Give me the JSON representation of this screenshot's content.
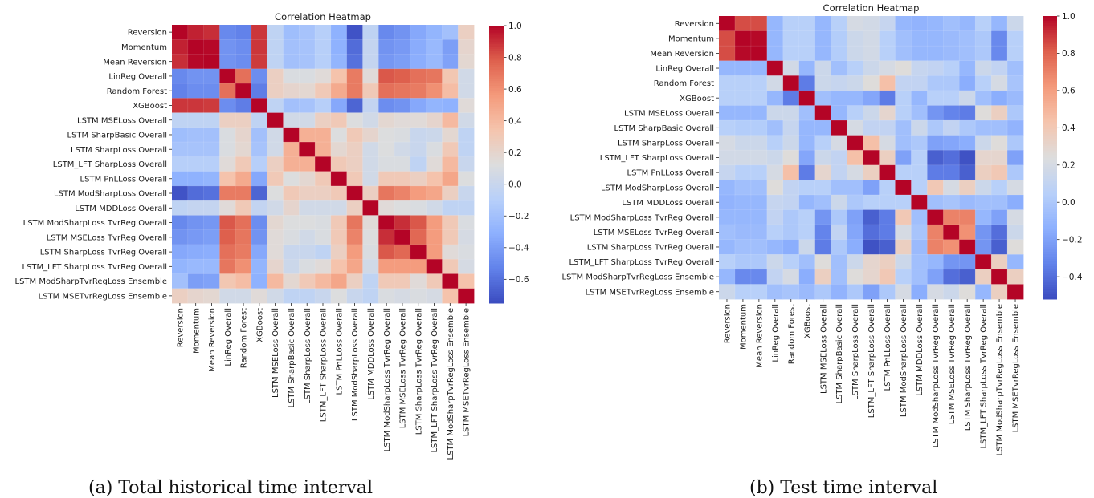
{
  "chart_data": [
    {
      "type": "heatmap",
      "title": "Correlation Heatmap",
      "caption": "(a) Total historical time interval",
      "labels": [
        "Reversion",
        "Momentum",
        "Mean Reversion",
        "LinReg Overall",
        "Random Forest",
        "XGBoost",
        "LSTM MSELoss Overall",
        "LSTM SharpBasic Overall",
        "LSTM SharpLoss Overall",
        "LSTM_LFT SharpLoss Overall",
        "LSTM PnLLoss Overall",
        "LSTM ModSharpLoss Overall",
        "LSTM MDDLoss Overall",
        "LSTM ModSharpLoss TvrReg Overall",
        "LSTM MSELoss TvrReg Overall",
        "LSTM SharpLoss TvrReg Overall",
        "LSTM_LFT SharpLoss TvrReg Overall",
        "LSTM ModSharpTvrRegLoss Ensemble",
        "LSTM MSETvrRegLoss Ensemble"
      ],
      "colormap": "coolwarm",
      "vmin": -0.75,
      "vmax": 1.0,
      "colorbar_ticks": [
        1.0,
        0.8,
        0.6,
        0.4,
        0.2,
        0.0,
        -0.2,
        -0.4,
        -0.6
      ],
      "colorbar_tick_labels": [
        "1.0",
        "0.8",
        "0.6",
        "0.4",
        "0.2",
        "0.0",
        "−0.2",
        "−0.4",
        "−0.6"
      ],
      "matrix": [
        [
          1.0,
          0.93,
          0.9,
          -0.5,
          -0.53,
          0.88,
          -0.05,
          -0.22,
          -0.18,
          -0.1,
          -0.3,
          -0.72,
          -0.05,
          -0.5,
          -0.45,
          -0.35,
          -0.28,
          -0.2,
          0.25
        ],
        [
          0.93,
          1.0,
          0.99,
          -0.45,
          -0.48,
          0.88,
          -0.05,
          -0.2,
          -0.18,
          -0.1,
          -0.3,
          -0.62,
          -0.02,
          -0.45,
          -0.42,
          -0.33,
          -0.25,
          -0.4,
          0.2
        ],
        [
          0.9,
          0.99,
          1.0,
          -0.45,
          -0.48,
          0.87,
          -0.05,
          -0.2,
          -0.18,
          -0.1,
          -0.28,
          -0.6,
          -0.02,
          -0.43,
          -0.4,
          -0.32,
          -0.25,
          -0.38,
          0.18
        ],
        [
          -0.5,
          -0.45,
          -0.45,
          1.0,
          0.72,
          -0.48,
          0.25,
          0.1,
          0.1,
          0.15,
          0.35,
          0.68,
          0.15,
          0.8,
          0.78,
          0.72,
          0.7,
          0.32,
          0.05
        ],
        [
          -0.53,
          -0.48,
          -0.48,
          0.72,
          1.0,
          -0.55,
          0.25,
          0.2,
          0.18,
          0.3,
          0.48,
          0.68,
          0.3,
          0.72,
          0.7,
          0.68,
          0.6,
          0.38,
          0.05
        ],
        [
          0.88,
          0.88,
          0.87,
          -0.48,
          -0.55,
          1.0,
          -0.05,
          -0.2,
          -0.18,
          -0.1,
          -0.35,
          -0.65,
          -0.03,
          -0.48,
          -0.45,
          -0.35,
          -0.28,
          -0.3,
          0.15
        ],
        [
          -0.05,
          -0.05,
          -0.05,
          0.25,
          0.25,
          -0.05,
          1.0,
          0.05,
          0.05,
          0.25,
          0.3,
          0.12,
          0.05,
          0.18,
          0.15,
          0.15,
          0.2,
          0.4,
          0.05
        ],
        [
          -0.22,
          -0.2,
          -0.2,
          0.1,
          0.2,
          -0.2,
          0.05,
          1.0,
          0.45,
          0.45,
          0.12,
          0.3,
          0.2,
          0.12,
          0.1,
          0.0,
          0.02,
          0.18,
          -0.05
        ],
        [
          -0.18,
          -0.18,
          -0.18,
          0.1,
          0.18,
          -0.18,
          0.05,
          0.45,
          1.0,
          0.45,
          0.18,
          0.25,
          0.05,
          0.12,
          0.05,
          0.0,
          0.1,
          0.3,
          -0.05
        ],
        [
          -0.1,
          -0.1,
          -0.1,
          0.15,
          0.3,
          -0.1,
          0.25,
          0.45,
          0.45,
          1.0,
          0.3,
          0.25,
          0.05,
          0.1,
          0.1,
          -0.05,
          0.15,
          0.4,
          0.0
        ],
        [
          -0.3,
          -0.3,
          -0.28,
          0.35,
          0.48,
          -0.35,
          0.3,
          0.12,
          0.18,
          0.3,
          1.0,
          0.3,
          0.05,
          0.3,
          0.3,
          0.25,
          0.35,
          0.5,
          0.12
        ],
        [
          -0.72,
          -0.62,
          -0.6,
          0.68,
          0.68,
          -0.65,
          0.12,
          0.3,
          0.25,
          0.25,
          0.3,
          1.0,
          0.25,
          0.7,
          0.65,
          0.55,
          0.5,
          0.25,
          0.0
        ],
        [
          -0.05,
          -0.02,
          -0.02,
          0.15,
          0.3,
          -0.03,
          0.05,
          0.2,
          0.05,
          0.05,
          0.05,
          0.25,
          1.0,
          0.15,
          0.12,
          0.1,
          0.05,
          -0.05,
          -0.05
        ],
        [
          -0.5,
          -0.45,
          -0.43,
          0.8,
          0.72,
          -0.48,
          0.18,
          0.12,
          0.12,
          0.1,
          0.3,
          0.7,
          0.15,
          1.0,
          0.9,
          0.8,
          0.55,
          0.3,
          0.1
        ],
        [
          -0.45,
          -0.42,
          -0.4,
          0.78,
          0.7,
          -0.45,
          0.15,
          0.1,
          0.05,
          0.1,
          0.3,
          0.65,
          0.12,
          0.9,
          1.0,
          0.75,
          0.55,
          0.3,
          0.08
        ],
        [
          -0.35,
          -0.33,
          -0.32,
          0.72,
          0.68,
          -0.35,
          0.15,
          0.0,
          0.0,
          -0.05,
          0.25,
          0.55,
          0.1,
          0.8,
          0.75,
          1.0,
          0.55,
          0.15,
          0.1
        ],
        [
          -0.28,
          -0.25,
          -0.25,
          0.7,
          0.6,
          -0.28,
          0.2,
          0.02,
          0.1,
          0.15,
          0.35,
          0.5,
          0.05,
          0.55,
          0.55,
          0.55,
          1.0,
          0.3,
          0.08
        ],
        [
          -0.2,
          -0.4,
          -0.38,
          0.32,
          0.38,
          -0.3,
          0.4,
          0.18,
          0.3,
          0.4,
          0.5,
          0.25,
          -0.05,
          0.3,
          0.3,
          0.15,
          0.3,
          1.0,
          0.35
        ],
        [
          0.25,
          0.2,
          0.18,
          0.05,
          0.05,
          0.15,
          0.05,
          -0.05,
          -0.05,
          0.0,
          0.12,
          0.0,
          -0.05,
          0.1,
          0.08,
          0.1,
          0.08,
          0.35,
          1.0
        ]
      ]
    },
    {
      "type": "heatmap",
      "title": "Correlation Heatmap",
      "caption": "(b) Test time interval",
      "labels": [
        "Reversion",
        "Momentum",
        "Mean Reversion",
        "LinReg Overall",
        "Random Forest",
        "XGBoost",
        "LSTM MSELoss Overall",
        "LSTM SharpBasic Overall",
        "LSTM SharpLoss Overall",
        "LSTM_LFT SharpLoss Overall",
        "LSTM PnLLoss Overall",
        "LSTM ModSharpLoss Overall",
        "LSTM MDDLoss Overall",
        "LSTM ModSharpLoss TvrReg Overall",
        "LSTM MSELoss TvrReg Overall",
        "LSTM SharpLoss TvrReg Overall",
        "LSTM_LFT SharpLoss TvrReg Overall",
        "LSTM ModSharpTvrRegLoss Ensemble",
        "LSTM MSETvrRegLoss Ensemble"
      ],
      "colormap": "coolwarm",
      "vmin": -0.52,
      "vmax": 1.0,
      "colorbar_ticks": [
        1.0,
        0.8,
        0.6,
        0.4,
        0.2,
        0.0,
        -0.2,
        -0.4
      ],
      "colorbar_tick_labels": [
        "1.0",
        "0.8",
        "0.6",
        "0.4",
        "0.2",
        "0.0",
        "−0.2",
        "−0.4"
      ],
      "matrix": [
        [
          1.0,
          0.85,
          0.85,
          -0.1,
          0.05,
          0.05,
          -0.1,
          0.05,
          0.2,
          0.18,
          0.12,
          -0.1,
          -0.12,
          -0.1,
          -0.05,
          -0.1,
          0.05,
          -0.1,
          0.15
        ],
        [
          0.85,
          1.0,
          0.99,
          -0.1,
          0.05,
          0.05,
          -0.1,
          0.03,
          0.15,
          0.18,
          0.05,
          -0.05,
          -0.1,
          -0.1,
          -0.08,
          -0.05,
          0.0,
          -0.3,
          0.05
        ],
        [
          0.85,
          0.99,
          1.0,
          -0.1,
          0.05,
          0.05,
          -0.1,
          0.03,
          0.15,
          0.18,
          0.05,
          -0.05,
          -0.1,
          -0.1,
          -0.08,
          -0.05,
          0.0,
          -0.3,
          0.05
        ],
        [
          -0.1,
          -0.1,
          -0.1,
          1.0,
          0.18,
          -0.1,
          0.15,
          -0.05,
          0.05,
          0.15,
          0.2,
          0.25,
          0.12,
          0.1,
          0.05,
          -0.1,
          0.15,
          0.1,
          -0.05
        ],
        [
          0.05,
          0.05,
          0.05,
          0.18,
          1.0,
          -0.35,
          0.15,
          0.12,
          0.15,
          0.25,
          0.45,
          0.1,
          0.1,
          0.0,
          0.0,
          -0.15,
          0.05,
          0.2,
          -0.02
        ],
        [
          0.05,
          0.05,
          0.05,
          -0.1,
          -0.35,
          1.0,
          -0.05,
          -0.1,
          -0.1,
          -0.18,
          -0.35,
          0.05,
          -0.1,
          0.05,
          0.05,
          0.15,
          -0.05,
          -0.15,
          -0.08
        ],
        [
          -0.1,
          -0.1,
          -0.1,
          0.15,
          0.15,
          -0.05,
          1.0,
          -0.1,
          0.05,
          0.15,
          0.3,
          0.05,
          -0.05,
          -0.25,
          -0.32,
          -0.35,
          0.25,
          0.35,
          0.0
        ],
        [
          0.05,
          0.03,
          0.03,
          -0.05,
          0.12,
          -0.1,
          -0.1,
          1.0,
          0.2,
          0.1,
          0.1,
          -0.05,
          0.15,
          0.0,
          0.1,
          0.0,
          -0.05,
          -0.05,
          -0.12
        ],
        [
          0.2,
          0.15,
          0.15,
          0.05,
          0.15,
          -0.1,
          0.05,
          0.2,
          1.0,
          0.45,
          0.2,
          -0.05,
          0.0,
          -0.2,
          -0.18,
          -0.15,
          0.15,
          0.25,
          0.0
        ],
        [
          0.18,
          0.18,
          0.18,
          0.15,
          0.25,
          -0.18,
          0.15,
          0.1,
          0.45,
          1.0,
          0.35,
          -0.2,
          0.05,
          -0.45,
          -0.4,
          -0.5,
          0.3,
          0.3,
          -0.2
        ],
        [
          0.12,
          0.05,
          0.05,
          0.2,
          0.45,
          -0.35,
          0.3,
          0.1,
          0.2,
          0.35,
          1.0,
          0.05,
          0.05,
          -0.35,
          -0.35,
          -0.45,
          0.35,
          0.4,
          0.0
        ],
        [
          -0.1,
          -0.05,
          -0.05,
          0.25,
          0.1,
          0.05,
          0.05,
          -0.05,
          -0.05,
          -0.2,
          0.05,
          1.0,
          0.05,
          0.4,
          0.2,
          0.35,
          0.15,
          0.05,
          0.2
        ],
        [
          -0.12,
          -0.1,
          -0.1,
          0.12,
          0.1,
          -0.1,
          -0.05,
          0.15,
          0.0,
          0.05,
          0.05,
          0.05,
          1.0,
          -0.05,
          -0.02,
          -0.08,
          -0.05,
          -0.05,
          -0.15
        ],
        [
          -0.1,
          -0.1,
          -0.1,
          0.1,
          0.0,
          0.05,
          -0.25,
          0.0,
          -0.2,
          -0.45,
          -0.35,
          0.4,
          -0.05,
          1.0,
          0.7,
          0.7,
          -0.1,
          -0.2,
          0.2
        ],
        [
          -0.05,
          -0.08,
          -0.08,
          0.05,
          0.0,
          0.05,
          -0.32,
          0.1,
          -0.18,
          -0.4,
          -0.35,
          0.2,
          -0.02,
          0.7,
          1.0,
          0.65,
          -0.25,
          -0.4,
          0.15
        ],
        [
          -0.1,
          -0.05,
          -0.05,
          -0.1,
          -0.15,
          0.15,
          -0.35,
          0.0,
          -0.15,
          -0.5,
          -0.45,
          0.35,
          -0.08,
          0.7,
          0.65,
          1.0,
          -0.25,
          -0.45,
          0.25
        ],
        [
          0.05,
          0.0,
          0.0,
          0.15,
          0.05,
          -0.05,
          0.25,
          -0.05,
          0.15,
          0.3,
          0.35,
          0.15,
          -0.05,
          -0.1,
          -0.25,
          -0.25,
          1.0,
          0.35,
          -0.1
        ],
        [
          -0.1,
          -0.3,
          -0.3,
          0.1,
          0.2,
          -0.15,
          0.35,
          -0.05,
          0.25,
          0.3,
          0.4,
          0.05,
          -0.05,
          -0.2,
          -0.4,
          -0.45,
          0.35,
          1.0,
          0.35
        ],
        [
          0.15,
          0.05,
          0.05,
          -0.05,
          -0.02,
          -0.08,
          0.0,
          -0.12,
          0.0,
          -0.2,
          0.0,
          0.2,
          -0.15,
          0.2,
          0.15,
          0.25,
          -0.1,
          0.35,
          1.0
        ]
      ]
    }
  ]
}
